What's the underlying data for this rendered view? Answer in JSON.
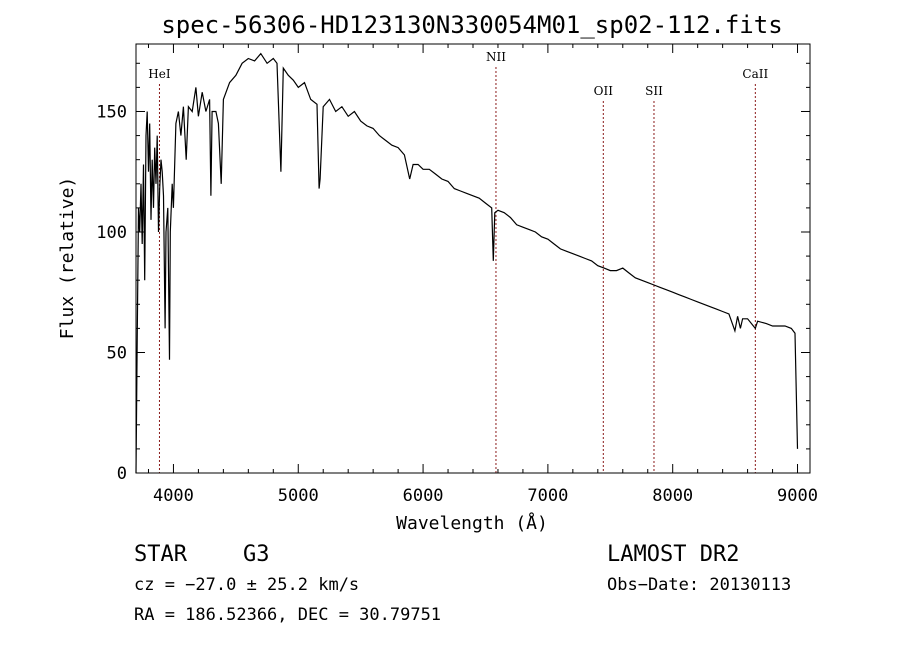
{
  "chart_data": {
    "type": "line",
    "title": "spec-56306-HD123130N330054M01_sp02-112.fits",
    "xlabel": "Wavelength (Å)",
    "ylabel": "Flux (relative)",
    "xlim": [
      3700,
      9100
    ],
    "ylim": [
      0,
      178
    ],
    "xticks": [
      4000,
      5000,
      6000,
      7000,
      8000,
      9000
    ],
    "yticks": [
      0,
      50,
      100,
      150
    ],
    "grid": false,
    "series": [
      {
        "points": [
          [
            3700,
            0
          ],
          [
            3710,
            55
          ],
          [
            3720,
            110
          ],
          [
            3730,
            100
          ],
          [
            3740,
            120
          ],
          [
            3750,
            95
          ],
          [
            3760,
            128
          ],
          [
            3770,
            80
          ],
          [
            3780,
            140
          ],
          [
            3790,
            150
          ],
          [
            3800,
            125
          ],
          [
            3810,
            145
          ],
          [
            3820,
            105
          ],
          [
            3830,
            130
          ],
          [
            3840,
            110
          ],
          [
            3850,
            135
          ],
          [
            3860,
            120
          ],
          [
            3870,
            140
          ],
          [
            3880,
            100
          ],
          [
            3890,
            118
          ],
          [
            3900,
            130
          ],
          [
            3910,
            125
          ],
          [
            3920,
            115
          ],
          [
            3933,
            60
          ],
          [
            3940,
            100
          ],
          [
            3955,
            110
          ],
          [
            3968,
            47
          ],
          [
            3975,
            100
          ],
          [
            3990,
            120
          ],
          [
            4000,
            110
          ],
          [
            4020,
            145
          ],
          [
            4040,
            150
          ],
          [
            4060,
            140
          ],
          [
            4080,
            152
          ],
          [
            4102,
            130
          ],
          [
            4120,
            152
          ],
          [
            4150,
            150
          ],
          [
            4180,
            160
          ],
          [
            4200,
            148
          ],
          [
            4230,
            158
          ],
          [
            4260,
            150
          ],
          [
            4290,
            155
          ],
          [
            4300,
            115
          ],
          [
            4310,
            150
          ],
          [
            4340,
            150
          ],
          [
            4360,
            145
          ],
          [
            4383,
            120
          ],
          [
            4400,
            155
          ],
          [
            4450,
            162
          ],
          [
            4500,
            165
          ],
          [
            4550,
            170
          ],
          [
            4600,
            172
          ],
          [
            4650,
            171
          ],
          [
            4700,
            174
          ],
          [
            4750,
            170
          ],
          [
            4800,
            172
          ],
          [
            4830,
            170
          ],
          [
            4861,
            125
          ],
          [
            4880,
            168
          ],
          [
            4920,
            165
          ],
          [
            4960,
            163
          ],
          [
            5000,
            160
          ],
          [
            5050,
            162
          ],
          [
            5100,
            155
          ],
          [
            5150,
            153
          ],
          [
            5167,
            118
          ],
          [
            5175,
            122
          ],
          [
            5200,
            152
          ],
          [
            5250,
            155
          ],
          [
            5300,
            150
          ],
          [
            5350,
            152
          ],
          [
            5400,
            148
          ],
          [
            5450,
            150
          ],
          [
            5500,
            146
          ],
          [
            5550,
            144
          ],
          [
            5600,
            143
          ],
          [
            5650,
            140
          ],
          [
            5700,
            138
          ],
          [
            5750,
            136
          ],
          [
            5800,
            135
          ],
          [
            5850,
            132
          ],
          [
            5893,
            122
          ],
          [
            5920,
            128
          ],
          [
            5960,
            128
          ],
          [
            6000,
            126
          ],
          [
            6050,
            126
          ],
          [
            6100,
            124
          ],
          [
            6150,
            122
          ],
          [
            6200,
            121
          ],
          [
            6250,
            118
          ],
          [
            6300,
            117
          ],
          [
            6350,
            116
          ],
          [
            6400,
            115
          ],
          [
            6450,
            114
          ],
          [
            6500,
            112
          ],
          [
            6550,
            110
          ],
          [
            6563,
            88
          ],
          [
            6575,
            108
          ],
          [
            6600,
            109
          ],
          [
            6650,
            108
          ],
          [
            6700,
            106
          ],
          [
            6750,
            103
          ],
          [
            6800,
            102
          ],
          [
            6850,
            101
          ],
          [
            6900,
            100
          ],
          [
            6950,
            98
          ],
          [
            7000,
            97
          ],
          [
            7050,
            95
          ],
          [
            7100,
            93
          ],
          [
            7150,
            92
          ],
          [
            7200,
            91
          ],
          [
            7250,
            90
          ],
          [
            7300,
            89
          ],
          [
            7350,
            88
          ],
          [
            7400,
            86
          ],
          [
            7450,
            85
          ],
          [
            7500,
            84
          ],
          [
            7550,
            84
          ],
          [
            7600,
            85
          ],
          [
            7650,
            83
          ],
          [
            7700,
            81
          ],
          [
            7750,
            80
          ],
          [
            7800,
            79
          ],
          [
            7850,
            78
          ],
          [
            7900,
            77
          ],
          [
            7950,
            76
          ],
          [
            8000,
            75
          ],
          [
            8050,
            74
          ],
          [
            8100,
            73
          ],
          [
            8150,
            72
          ],
          [
            8200,
            71
          ],
          [
            8250,
            70
          ],
          [
            8300,
            69
          ],
          [
            8350,
            68
          ],
          [
            8400,
            67
          ],
          [
            8450,
            66
          ],
          [
            8498,
            59
          ],
          [
            8520,
            65
          ],
          [
            8542,
            60
          ],
          [
            8560,
            64
          ],
          [
            8600,
            64
          ],
          [
            8662,
            60
          ],
          [
            8680,
            63
          ],
          [
            8750,
            62
          ],
          [
            8800,
            61
          ],
          [
            8850,
            61
          ],
          [
            8900,
            61
          ],
          [
            8950,
            60
          ],
          [
            8980,
            58
          ],
          [
            9000,
            10
          ]
        ]
      }
    ],
    "lines": [
      {
        "label": "HeI",
        "x": 3888
      },
      {
        "label": "NII",
        "x": 6584
      },
      {
        "label": "OII",
        "x": 7444
      },
      {
        "label": "SII",
        "x": 7850
      },
      {
        "label": "CaII",
        "x": 8662
      }
    ],
    "line_color": "#8b1a1a"
  },
  "annotations": {
    "object": "STAR",
    "subclass": "G3",
    "survey": "LAMOST DR2",
    "cz": "cz = −27.0 ± 25.2 km/s",
    "obs_date": "Obs−Date: 20130113",
    "coords": "RA = 186.52366, DEC =  30.79751"
  }
}
